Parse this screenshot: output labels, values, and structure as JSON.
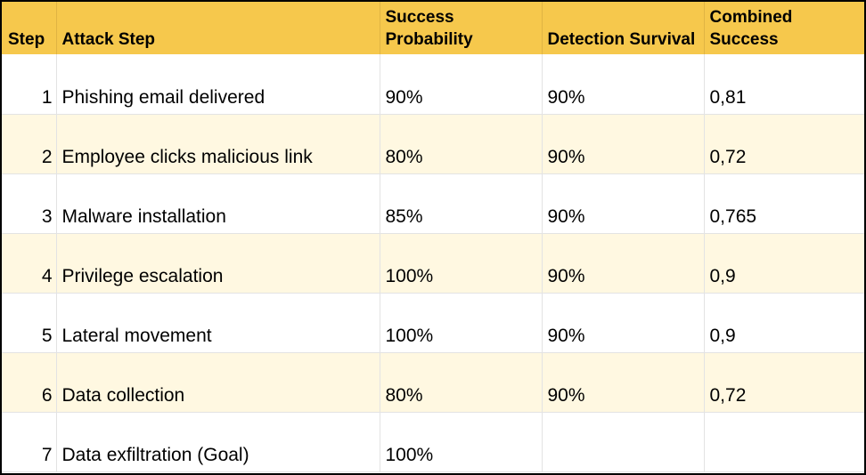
{
  "headers": {
    "step": "Step",
    "attack_step": "Attack Step",
    "success_probability": "Success Probability",
    "detection_survival": "Detection Survival",
    "combined_success": "Combined Success"
  },
  "rows": [
    {
      "step": "1",
      "attack_step": "Phishing email delivered",
      "success_probability": "90%",
      "detection_survival": "90%",
      "combined_success": "0,81"
    },
    {
      "step": "2",
      "attack_step": "Employee clicks malicious link",
      "success_probability": "80%",
      "detection_survival": "90%",
      "combined_success": "0,72"
    },
    {
      "step": "3",
      "attack_step": "Malware installation",
      "success_probability": "85%",
      "detection_survival": "90%",
      "combined_success": "0,765"
    },
    {
      "step": "4",
      "attack_step": "Privilege escalation",
      "success_probability": "100%",
      "detection_survival": "90%",
      "combined_success": "0,9"
    },
    {
      "step": "5",
      "attack_step": "Lateral movement",
      "success_probability": "100%",
      "detection_survival": "90%",
      "combined_success": "0,9"
    },
    {
      "step": "6",
      "attack_step": "Data collection",
      "success_probability": "80%",
      "detection_survival": "90%",
      "combined_success": "0,72"
    },
    {
      "step": "7",
      "attack_step": "Data exfiltration (Goal)",
      "success_probability": "100%",
      "detection_survival": "",
      "combined_success": ""
    }
  ],
  "colors": {
    "header_background": "#f6c84c",
    "alternate_row_background": "#fff8e1",
    "row_background": "#ffffff",
    "grid_line": "#e3e3e3",
    "outer_border": "#000000"
  }
}
